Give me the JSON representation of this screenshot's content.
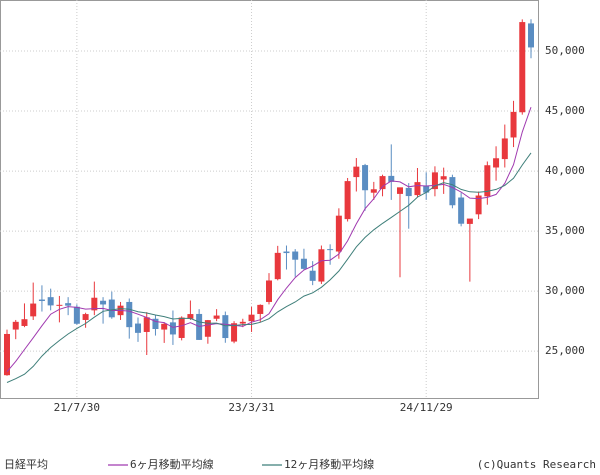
{
  "chart_data": {
    "type": "candlestick",
    "categories": [
      null,
      null,
      null,
      null,
      null,
      null,
      null,
      null,
      "21/7/30",
      null,
      null,
      null,
      null,
      null,
      null,
      null,
      null,
      null,
      null,
      null,
      null,
      null,
      null,
      null,
      null,
      null,
      null,
      null,
      "23/3/31",
      null,
      null,
      null,
      null,
      null,
      null,
      null,
      null,
      null,
      null,
      null,
      null,
      null,
      null,
      null,
      null,
      null,
      null,
      null,
      "24/11/29",
      null,
      null,
      null,
      null,
      null,
      null,
      null,
      null,
      null,
      null,
      null,
      null
    ],
    "ohlc": {
      "name": "日経平均",
      "up_color": "#e8383d",
      "down_color": "#5a8dc2",
      "open": [
        23000,
        26800,
        27100,
        27900,
        29300,
        29500,
        28800,
        29000,
        28700,
        27600,
        28400,
        29200,
        29300,
        28000,
        29100,
        27300,
        26600,
        27700,
        26800,
        27400,
        26100,
        27700,
        28100,
        26200,
        27700,
        28000,
        25800,
        27300,
        27500,
        28100,
        29100,
        31000,
        33300,
        33300,
        32700,
        31700,
        30800,
        33500,
        33300,
        36000,
        39500,
        40500,
        38200,
        38500,
        39600,
        38100,
        38600,
        38000,
        38800,
        38500,
        39300,
        39500,
        37800,
        35600,
        36400,
        37900,
        40300,
        41000,
        42800,
        44900,
        52300
      ],
      "high": [
        26800,
        27600,
        28979,
        30714,
        30485,
        30208,
        29600,
        29500,
        28900,
        28200,
        30795,
        29500,
        29960,
        29100,
        29388,
        27800,
        28252,
        28000,
        27400,
        28389,
        27900,
        29222,
        28500,
        27600,
        28502,
        28300,
        27500,
        27700,
        28700,
        28900,
        31500,
        33772,
        33800,
        33500,
        33533,
        32500,
        33800,
        33900,
        36900,
        39426,
        41087,
        40600,
        39100,
        39700,
        42224,
        38300,
        39000,
        40257,
        39900,
        40398,
        40288,
        39700,
        38200,
        36000,
        38300,
        40800,
        42065,
        43876,
        45852,
        52636,
        52650
      ],
      "low": [
        22950,
        26000,
        27000,
        27600,
        28300,
        28400,
        27400,
        28000,
        27200,
        26950,
        28000,
        27293,
        27700,
        27600,
        26044,
        25770,
        24681,
        26300,
        25688,
        25520,
        25900,
        27600,
        25937,
        25621,
        27500,
        25700,
        25661,
        27000,
        26600,
        27400,
        28900,
        30900,
        31800,
        31200,
        31800,
        30500,
        30600,
        32200,
        32700,
        35800,
        38300,
        36700,
        37600,
        37900,
        37600,
        31156,
        35200,
        37800,
        37600,
        37900,
        38100,
        36900,
        35400,
        30792,
        36000,
        37200,
        39200,
        40300,
        42000,
        44700,
        49400
      ],
      "close": [
        26433,
        27444,
        27663,
        28966,
        29179,
        28813,
        28860,
        28791,
        27283,
        28089,
        29452,
        28892,
        27821,
        28791,
        27001,
        26526,
        27821,
        26847,
        27279,
        26393,
        27801,
        28091,
        25937,
        27587,
        27968,
        26094,
        27327,
        27445,
        28041,
        28856,
        30888,
        33189,
        33172,
        32619,
        31857,
        30858,
        33487,
        33464,
        36286,
        39166,
        40369,
        38405,
        38487,
        39583,
        39101,
        38647,
        37919,
        39081,
        38208,
        39894,
        39572,
        37155,
        35617,
        36045,
        37965,
        40487,
        41069,
        42718,
        44932,
        52411,
        50300
      ]
    },
    "series": [
      {
        "name": "6ヶ月移動平均線",
        "color": "#a03ab0",
        "values": [
          23289,
          24148,
          25140,
          26111,
          27110,
          28083,
          28488,
          28712,
          28649,
          28503,
          28548,
          28561,
          28388,
          28388,
          28341,
          28081,
          27809,
          27468,
          27378,
          26978,
          27111,
          27372,
          27058,
          27181,
          27296,
          27246,
          27167,
          27060,
          27410,
          27622,
          28109,
          29291,
          30265,
          31128,
          31764,
          32097,
          32530,
          32576,
          33095,
          34186,
          35605,
          36863,
          37696,
          38716,
          39185,
          39099,
          38690,
          38803,
          38757,
          38808,
          38887,
          38638,
          38255,
          37749,
          37708,
          37807,
          38056,
          38984,
          40536,
          43264,
          45320
        ]
      },
      {
        "name": "12ヶ月移動平均線",
        "color": "#3f7f7a",
        "values": [
          22394,
          22710,
          23081,
          23733,
          24588,
          25306,
          25888,
          26430,
          26895,
          27307,
          27829,
          28322,
          28438,
          28550,
          28495,
          28292,
          28178,
          28015,
          27883,
          27683,
          27726,
          27726,
          27433,
          27325,
          27337,
          27112,
          27139,
          27216,
          27234,
          27402,
          27702,
          28269,
          28716,
          29094,
          29587,
          29860,
          30319,
          30934,
          31680,
          32657,
          33684,
          34480,
          35113,
          35646,
          36140,
          36643,
          37148,
          37833,
          38226,
          38762,
          39036,
          38868,
          38472,
          38276,
          38232,
          38308,
          38472,
          38811,
          39395,
          40506,
          41513
        ]
      }
    ],
    "ylim": [
      21100,
      54250
    ],
    "yticks": [
      {
        "value": 25000,
        "label": "25,000"
      },
      {
        "value": 30000,
        "label": "30,000"
      },
      {
        "value": 35000,
        "label": "35,000"
      },
      {
        "value": 40000,
        "label": "40,000"
      },
      {
        "value": 45000,
        "label": "45,000"
      },
      {
        "value": 50000,
        "label": "50,000"
      }
    ],
    "grid": true,
    "copyright": "(c)Quants Research"
  }
}
